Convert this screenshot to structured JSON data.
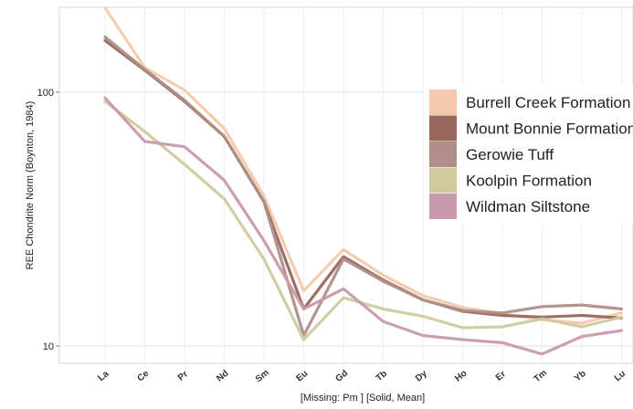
{
  "chart_data": {
    "type": "line",
    "ylabel": "REE Chondrite Norm (Boynton, 1984)",
    "xlabel": "[Missing: Pm ]  [Solid, Mean]",
    "y_scale": "log",
    "ylim": [
      9,
      230
    ],
    "y_ticks": [
      10,
      100
    ],
    "grid": true,
    "legend_position": "top-right",
    "categories": [
      "La",
      "Ce",
      "Pr",
      "Nd",
      "Sm",
      "Eu",
      "Gd",
      "Tb",
      "Dy",
      "Ho",
      "Er",
      "Tm",
      "Yb",
      "Lu"
    ],
    "series": [
      {
        "name": "Burrell Creek Formation",
        "color": "#f5c9ad",
        "values": [
          215,
          125,
          102,
          72,
          39,
          16.5,
          24,
          19,
          15.8,
          14.2,
          13.4,
          12.7,
          12.3,
          13.5
        ]
      },
      {
        "name": "Mount Bonnie Formation",
        "color": "#98685f",
        "values": [
          160,
          122,
          92,
          67,
          37,
          14,
          22.5,
          18.2,
          15.2,
          13.7,
          13.2,
          13,
          13.2,
          12.9
        ]
      },
      {
        "name": "Gerowie Tuff",
        "color": "#b08e89",
        "values": [
          165,
          123,
          93,
          67,
          37,
          11,
          22,
          18,
          15.2,
          13.8,
          13.5,
          14.3,
          14.5,
          14
        ]
      },
      {
        "name": "Koolpin Formation",
        "color": "#cfcaa0",
        "values": [
          92,
          70,
          52,
          38,
          22,
          10.6,
          15.5,
          14,
          13.1,
          11.8,
          11.9,
          12.8,
          11.9,
          13
        ]
      },
      {
        "name": "Wildman Siltstone",
        "color": "#c99aac",
        "values": [
          95,
          64,
          61,
          45,
          26,
          14,
          16.8,
          12.5,
          11,
          10.6,
          10.3,
          9.3,
          10.9,
          11.5
        ]
      }
    ]
  }
}
